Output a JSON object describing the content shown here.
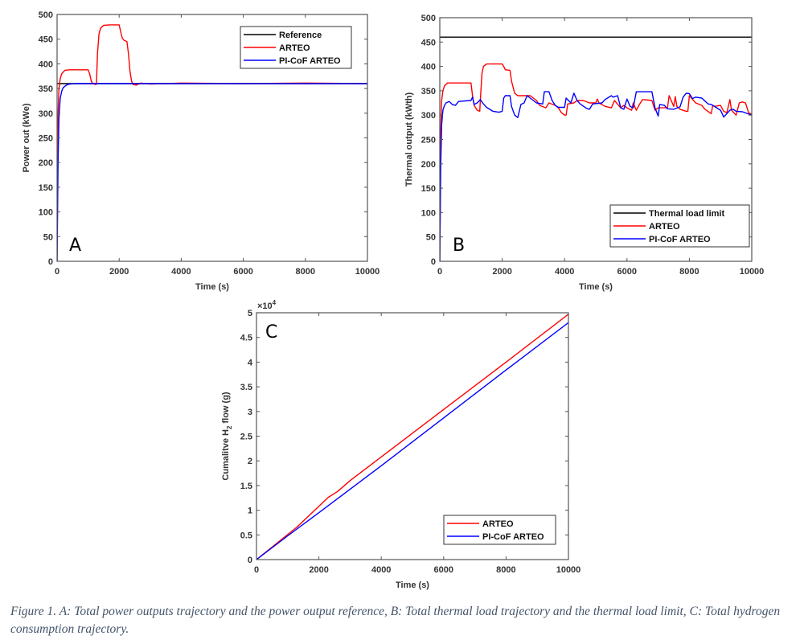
{
  "caption": "Figure 1. A: Total power outputs trajectory and the power output reference, B: Total thermal load trajectory and the thermal load limit, C: Total hydrogen consumption trajectory.",
  "colors": {
    "reference": "#000000",
    "arteo": "#ff0000",
    "picof": "#0000ff",
    "axis": "#555555"
  },
  "chart_data": [
    {
      "id": "A",
      "type": "line",
      "panel_label": "A",
      "xlabel": "Time (s)",
      "ylabel": "Power out (kWe)",
      "xlim": [
        0,
        10000
      ],
      "ylim": [
        0,
        500
      ],
      "xticks": [
        0,
        2000,
        4000,
        6000,
        8000,
        10000
      ],
      "yticks": [
        0,
        50,
        100,
        150,
        200,
        250,
        300,
        350,
        400,
        450,
        500
      ],
      "legend_position": "top-right",
      "series": [
        {
          "name": "Reference",
          "color_key": "reference",
          "x": [
            0,
            10000
          ],
          "y": [
            360,
            360
          ]
        },
        {
          "name": "ARTEO",
          "color_key": "arteo",
          "x": [
            0,
            30,
            60,
            100,
            150,
            250,
            400,
            1000,
            1050,
            1100,
            1150,
            1250,
            1270,
            1300,
            1350,
            1400,
            1500,
            1700,
            2000,
            2050,
            2100,
            2150,
            2250,
            2300,
            2350,
            2400,
            2450,
            2550,
            2700,
            3000,
            4000,
            6000,
            8000,
            10000
          ],
          "y": [
            0,
            300,
            350,
            370,
            380,
            387,
            388,
            388,
            380,
            365,
            360,
            358,
            360,
            420,
            460,
            472,
            478,
            479,
            479,
            465,
            452,
            448,
            445,
            420,
            385,
            365,
            358,
            357,
            361,
            359,
            361,
            360,
            361,
            360
          ]
        },
        {
          "name": "PI-CoF ARTEO",
          "color_key": "picof",
          "x": [
            0,
            30,
            60,
            100,
            150,
            200,
            300,
            400,
            600,
            1000,
            3000,
            6000,
            10000
          ],
          "y": [
            0,
            200,
            290,
            330,
            345,
            352,
            357,
            359,
            360,
            360,
            360,
            360,
            360
          ]
        }
      ]
    },
    {
      "id": "B",
      "type": "line",
      "panel_label": "B",
      "xlabel": "Time (s)",
      "ylabel": "Thermal output (kWth)",
      "xlim": [
        0,
        10000
      ],
      "ylim": [
        0,
        500
      ],
      "xticks": [
        0,
        2000,
        4000,
        6000,
        8000,
        10000
      ],
      "yticks": [
        0,
        50,
        100,
        150,
        200,
        250,
        300,
        350,
        400,
        450,
        500
      ],
      "legend_position": "bottom-right",
      "series": [
        {
          "name": "Thermal load limit",
          "color_key": "reference",
          "x": [
            0,
            10000
          ],
          "y": [
            460,
            460
          ]
        },
        {
          "name": "ARTEO",
          "color_key": "arteo",
          "x": [
            0,
            30,
            60,
            100,
            150,
            250,
            400,
            1000,
            1050,
            1100,
            1200,
            1280,
            1300,
            1350,
            1400,
            1500,
            2000,
            2050,
            2100,
            2250,
            2300,
            2400,
            2500,
            2600,
            2900,
            3000,
            3100,
            3200,
            3400,
            3500,
            3700,
            3800,
            3900,
            4000,
            4050,
            4100,
            4300,
            4400,
            4600,
            4800,
            5000,
            5050,
            5100,
            5300,
            5500,
            5600,
            5800,
            5900,
            6000,
            6150,
            6200,
            6300,
            6400,
            6500,
            6800,
            6900,
            7000,
            7300,
            7350,
            7500,
            7550,
            7600,
            7700,
            7900,
            7950,
            8000,
            8200,
            8400,
            8500,
            8700,
            8750,
            8800,
            9000,
            9100,
            9200,
            9300,
            9350,
            9500,
            9600,
            9700,
            9800,
            9900,
            10000
          ],
          "y": [
            0,
            270,
            330,
            350,
            360,
            366,
            366,
            366,
            340,
            320,
            310,
            308,
            330,
            385,
            400,
            405,
            405,
            400,
            393,
            392,
            370,
            345,
            340,
            340,
            340,
            335,
            330,
            320,
            315,
            325,
            320,
            315,
            305,
            300,
            300,
            323,
            325,
            330,
            330,
            325,
            325,
            333,
            325,
            318,
            315,
            330,
            315,
            320,
            315,
            310,
            325,
            310,
            322,
            332,
            330,
            310,
            315,
            315,
            340,
            318,
            338,
            318,
            312,
            308,
            308,
            340,
            325,
            320,
            312,
            303,
            320,
            318,
            320,
            308,
            305,
            332,
            310,
            300,
            325,
            327,
            325,
            305,
            302
          ]
        },
        {
          "name": "PI-CoF ARTEO",
          "color_key": "picof",
          "x": [
            0,
            30,
            60,
            100,
            150,
            200,
            300,
            400,
            500,
            600,
            1000,
            1050,
            1100,
            1200,
            1300,
            1400,
            1500,
            1700,
            1900,
            2000,
            2050,
            2100,
            2250,
            2300,
            2400,
            2500,
            2600,
            2700,
            2800,
            2900,
            3000,
            3100,
            3300,
            3350,
            3500,
            3600,
            3700,
            3800,
            4000,
            4050,
            4200,
            4300,
            4400,
            4500,
            4700,
            4800,
            4900,
            5200,
            5300,
            5500,
            5550,
            5700,
            5800,
            5900,
            6000,
            6100,
            6200,
            6300,
            6800,
            6900,
            7000,
            7050,
            7200,
            7300,
            7500,
            7700,
            7800,
            7900,
            8000,
            8100,
            8200,
            8400,
            8600,
            8700,
            9000,
            9100,
            9300,
            9400,
            9500,
            9700,
            10000
          ],
          "y": [
            0,
            200,
            280,
            310,
            320,
            325,
            328,
            322,
            320,
            328,
            330,
            337,
            322,
            325,
            332,
            323,
            316,
            308,
            306,
            308,
            335,
            340,
            340,
            318,
            300,
            295,
            322,
            325,
            340,
            335,
            330,
            325,
            323,
            348,
            348,
            330,
            320,
            316,
            316,
            335,
            325,
            345,
            330,
            323,
            314,
            312,
            323,
            325,
            332,
            340,
            337,
            340,
            315,
            312,
            333,
            318,
            315,
            348,
            348,
            315,
            298,
            322,
            320,
            313,
            312,
            317,
            337,
            345,
            344,
            334,
            337,
            335,
            323,
            322,
            310,
            296,
            310,
            312,
            308,
            307,
            300
          ]
        }
      ]
    },
    {
      "id": "C",
      "type": "line",
      "panel_label": "C",
      "xlabel": "Time (s)",
      "ylabel_prefix": "Cumalitve H",
      "ylabel_sub": "2",
      "ylabel_suffix": " flow (g)",
      "y_exponent_base": "×10",
      "y_exponent_power": "4",
      "xlim": [
        0,
        10000
      ],
      "ylim": [
        0,
        5
      ],
      "xticks": [
        0,
        2000,
        4000,
        6000,
        8000,
        10000
      ],
      "yticks": [
        0,
        0.5,
        1,
        1.5,
        2,
        2.5,
        3,
        3.5,
        4,
        4.5,
        5
      ],
      "legend_position": "bottom-right",
      "series": [
        {
          "name": "ARTEO",
          "color_key": "arteo",
          "x": [
            0,
            1300,
            1600,
            2000,
            2300,
            2600,
            3000,
            4000,
            6000,
            8000,
            10000
          ],
          "y": [
            0,
            0.66,
            0.84,
            1.08,
            1.26,
            1.38,
            1.6,
            2.08,
            3.04,
            4.0,
            4.97
          ]
        },
        {
          "name": "PI-CoF ARTEO",
          "color_key": "picof",
          "x": [
            0,
            1000,
            2000,
            4000,
            6000,
            8000,
            10000
          ],
          "y": [
            0,
            0.48,
            0.95,
            1.9,
            2.87,
            3.84,
            4.8
          ]
        }
      ]
    }
  ]
}
